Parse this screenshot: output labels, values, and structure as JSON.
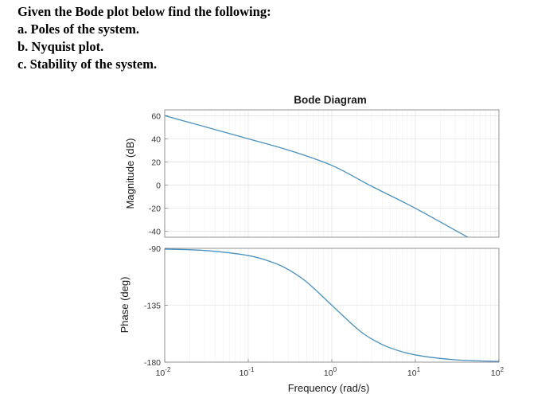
{
  "question": {
    "lines": [
      "Given the Bode plot below find the following:",
      "a. Poles of the system.",
      "b. Nyquist plot.",
      "c. Stability of the system."
    ]
  },
  "chart_data": {
    "type": "line",
    "title": "Bode Diagram",
    "xlabel": "Frequency  (rad/s)",
    "x_scale": "log",
    "xlim": [
      0.01,
      100
    ],
    "x_ticks": [
      {
        "value": 0.01,
        "base": "10",
        "exp": "-2"
      },
      {
        "value": 0.1,
        "base": "10",
        "exp": "-1"
      },
      {
        "value": 1,
        "base": "10",
        "exp": "0"
      },
      {
        "value": 10,
        "base": "10",
        "exp": "1"
      },
      {
        "value": 100,
        "base": "10",
        "exp": "2"
      }
    ],
    "grid": true,
    "line_color": "#4a90c0",
    "magnitude": {
      "ylabel": "Magnitude (dB)",
      "ylim": [
        -45,
        65
      ],
      "y_ticks": [
        60,
        40,
        20,
        0,
        -20,
        -40
      ],
      "tick_labels": [
        "60",
        "40",
        "20",
        "0",
        "-20",
        "-40"
      ],
      "x": [
        0.01,
        0.03,
        0.1,
        0.3,
        1,
        3,
        10,
        30,
        100
      ],
      "y": [
        60,
        50.5,
        40,
        30.3,
        17,
        -1,
        -20,
        -39,
        -60
      ]
    },
    "phase": {
      "ylabel": "Phase (deg)",
      "ylim": [
        -180,
        -90
      ],
      "y_ticks": [
        -90,
        -135,
        -180
      ],
      "tick_labels": [
        "-90",
        "-135",
        "-180"
      ],
      "x": [
        0.01,
        0.03,
        0.1,
        0.2,
        0.3,
        0.5,
        1,
        2,
        3,
        5,
        10,
        30,
        100
      ],
      "y": [
        -90.6,
        -91.7,
        -95.7,
        -101.3,
        -106.7,
        -116.6,
        -135,
        -153.4,
        -161.6,
        -168.7,
        -174.3,
        -178.1,
        -179.4
      ]
    }
  }
}
